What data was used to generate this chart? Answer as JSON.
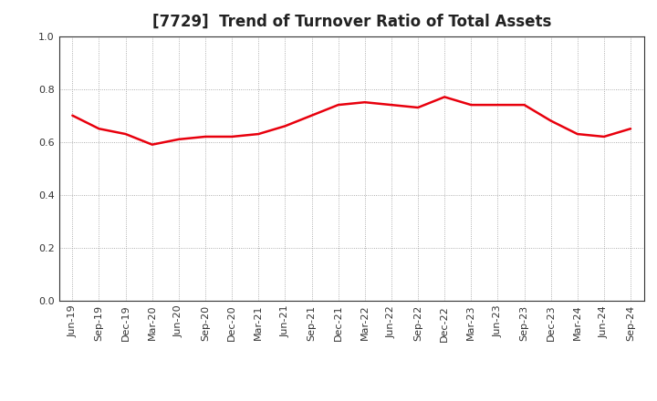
{
  "title": "[7729]  Trend of Turnover Ratio of Total Assets",
  "x_labels": [
    "Jun-19",
    "Sep-19",
    "Dec-19",
    "Mar-20",
    "Jun-20",
    "Sep-20",
    "Dec-20",
    "Mar-21",
    "Jun-21",
    "Sep-21",
    "Dec-21",
    "Mar-22",
    "Jun-22",
    "Sep-22",
    "Dec-22",
    "Mar-23",
    "Jun-23",
    "Sep-23",
    "Dec-23",
    "Mar-24",
    "Jun-24",
    "Sep-24"
  ],
  "values": [
    0.7,
    0.65,
    0.63,
    0.59,
    0.61,
    0.62,
    0.62,
    0.63,
    0.66,
    0.7,
    0.74,
    0.75,
    0.74,
    0.73,
    0.77,
    0.74,
    0.74,
    0.74,
    0.68,
    0.63,
    0.62,
    0.65
  ],
  "line_color": "#e8000d",
  "line_width": 1.8,
  "ylim": [
    0.0,
    1.0
  ],
  "yticks": [
    0.0,
    0.2,
    0.4,
    0.6,
    0.8,
    1.0
  ],
  "background_color": "#ffffff",
  "plot_bg_color": "#ffffff",
  "grid_color": "#999999",
  "title_fontsize": 12,
  "tick_fontsize": 8
}
